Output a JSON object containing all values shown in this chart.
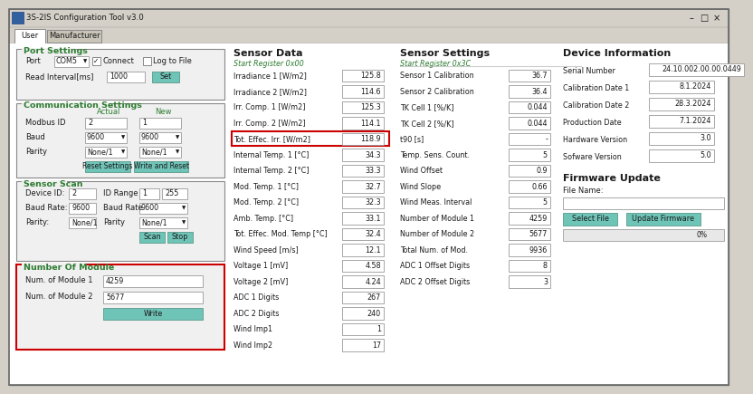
{
  "title": "3S-2IS Configuration Tool v3.0",
  "bg_outer": "#d4d0c8",
  "bg_inner": "#ece9d8",
  "bg_white": "#ffffff",
  "bg_panel": "#f0f0f0",
  "teal_btn": "#6fc4b8",
  "green_hdr": "#2e7d32",
  "red_bdr": "#cc0000",
  "gray_line": "#a0a0a0",
  "sensor_data_rows": [
    [
      "Irradiance 1 [W/m2]",
      "125.8",
      false
    ],
    [
      "Irradiance 2 [W/m2]",
      "114.6",
      false
    ],
    [
      "Irr. Comp. 1 [W/m2]",
      "125.3",
      false
    ],
    [
      "Irr. Comp. 2 [W/m2]",
      "114.1",
      false
    ],
    [
      "Tot. Effec. Irr. [W/m2]",
      "118.9",
      true
    ],
    [
      "Internal Temp. 1 [°C]",
      "34.3",
      false
    ],
    [
      "Internal Temp. 2 [°C]",
      "33.3",
      false
    ],
    [
      "Mod. Temp. 1 [°C]",
      "32.7",
      false
    ],
    [
      "Mod. Temp. 2 [°C]",
      "32.3",
      false
    ],
    [
      "Amb. Temp. [°C]",
      "33.1",
      false
    ],
    [
      "Tot. Effec. Mod. Temp [°C]",
      "32.4",
      false
    ],
    [
      "Wind Speed [m/s]",
      "12.1",
      false
    ],
    [
      "Voltage 1 [mV]",
      "4.58",
      false
    ],
    [
      "Voltage 2 [mV]",
      "4.24",
      false
    ],
    [
      "ADC 1 Digits",
      "267",
      false
    ],
    [
      "ADC 2 Digits",
      "240",
      false
    ],
    [
      "Wind Imp1",
      "1",
      false
    ],
    [
      "Wind Imp2",
      "17",
      false
    ]
  ],
  "sensor_settings_rows": [
    [
      "Sensor 1 Calibration",
      "36.7"
    ],
    [
      "Sensor 2 Calibration",
      "36.4"
    ],
    [
      "TK Cell 1 [%/K]",
      "0.044"
    ],
    [
      "TK Cell 2 [%/K]",
      "0.044"
    ],
    [
      "t90 [s]",
      "-"
    ],
    [
      "Temp. Sens. Count.",
      "5"
    ],
    [
      "Wind Offset",
      "0.9"
    ],
    [
      "Wind Slope",
      "0.66"
    ],
    [
      "Wind Meas. Interval",
      "5"
    ],
    [
      "Number of Module 1",
      "4259"
    ],
    [
      "Number of Module 2",
      "5677"
    ],
    [
      "Total Num. of Mod.",
      "9936"
    ],
    [
      "ADC 1 Offset Digits",
      "8"
    ],
    [
      "ADC 2 Offset Digits",
      "3"
    ]
  ],
  "device_info_rows": [
    [
      "Serial Number",
      "24.10.002.00.00.0449"
    ],
    [
      "Calibration Date 1",
      "8.1.2024"
    ],
    [
      "Calibration Date 2",
      "28.3.2024"
    ],
    [
      "Production Date",
      "7.1.2024"
    ],
    [
      "Hardware Version",
      "3.0"
    ],
    [
      "Sofware Version",
      "5.0"
    ]
  ]
}
